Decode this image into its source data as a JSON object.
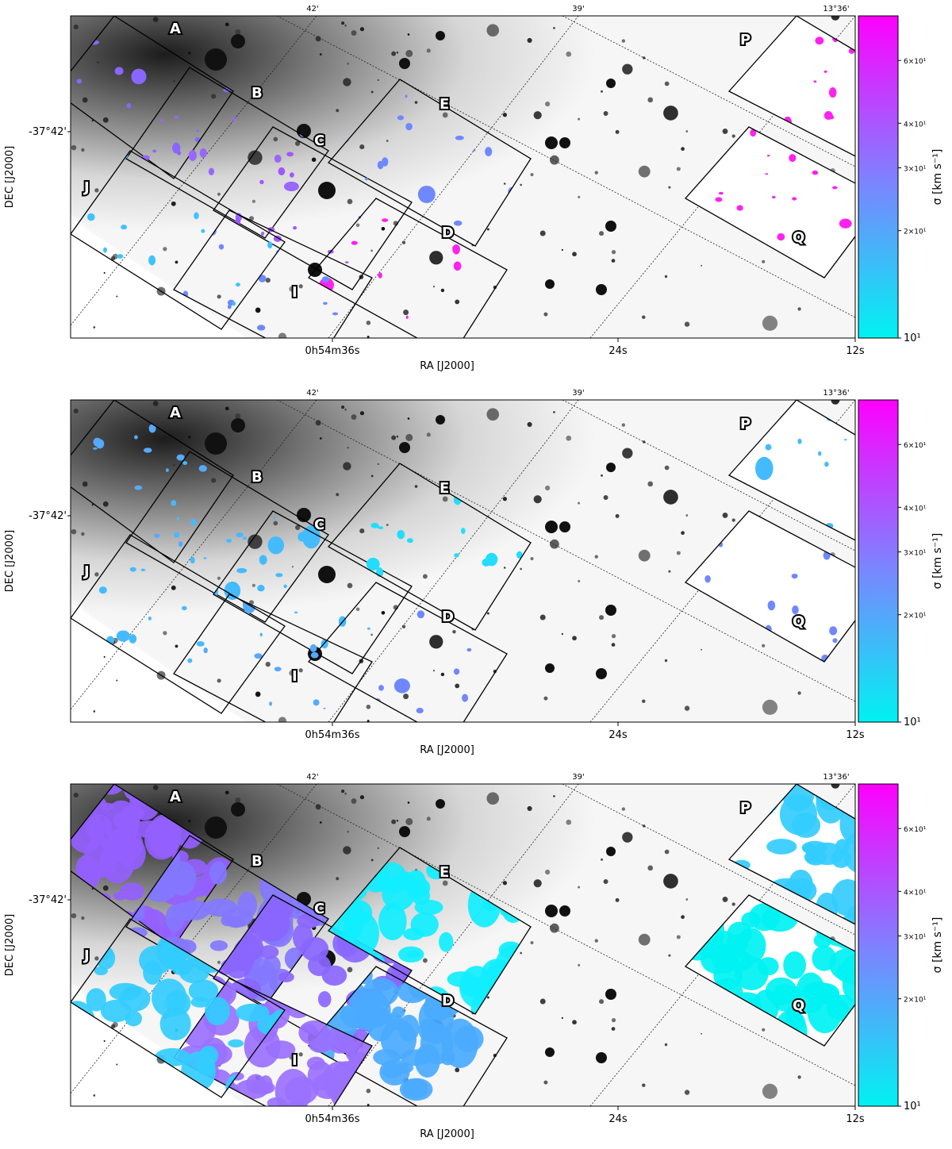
{
  "axes": {
    "xlabel": "RA [J2000]",
    "ylabel": "DEC [J2000]",
    "x_ticks": [
      "0h54m36s",
      "24s",
      "12s"
    ],
    "y_ticks": [
      "-37°42'"
    ],
    "top_ticks": [
      "42'",
      "39'",
      "13°36'"
    ]
  },
  "colorbar": {
    "label": "σ [km s⁻¹]",
    "tick_labels": [
      "10¹",
      "2×10¹",
      "3×10¹",
      "4×10¹",
      "6×10¹"
    ],
    "tick_values": [
      10,
      20,
      30,
      40,
      60
    ],
    "min": 10,
    "max": 80,
    "scale": "log",
    "color_low": "#00f2f2",
    "color_mid": "#8080ff",
    "color_high": "#ff00ff"
  },
  "box_labels": [
    "A",
    "B",
    "C",
    "D",
    "E",
    "I",
    "J",
    "P",
    "Q"
  ],
  "panels": [
    {
      "id": "panel-1",
      "dominant_color": "#9966ff",
      "region_colors": {
        "A": "#8a66ff",
        "B": "#9966ff",
        "C": "#a455ff",
        "D": "#ff22ee",
        "E": "#6f88ff",
        "I": "#6f88ff",
        "J": "#3fc2ff",
        "P": "#ff22ee",
        "Q": "#ff22ee"
      }
    },
    {
      "id": "panel-2",
      "dominant_color": "#44bbff",
      "region_colors": {
        "A": "#55aaff",
        "B": "#44bbff",
        "C": "#44bbff",
        "D": "#6f88ff",
        "E": "#22ddff",
        "I": "#55aaff",
        "J": "#44bbff",
        "P": "#44bbff",
        "Q": "#6f88ff"
      }
    },
    {
      "id": "panel-3",
      "dominant_color": "#8a66ff",
      "region_colors": {
        "A": "#9460ff",
        "B": "#8377ff",
        "C": "#8a66ff",
        "D": "#4aaaff",
        "E": "#11eeff",
        "I": "#9a70ff",
        "J": "#33ccff",
        "P": "#33ccff",
        "Q": "#00f2f2"
      }
    }
  ]
}
